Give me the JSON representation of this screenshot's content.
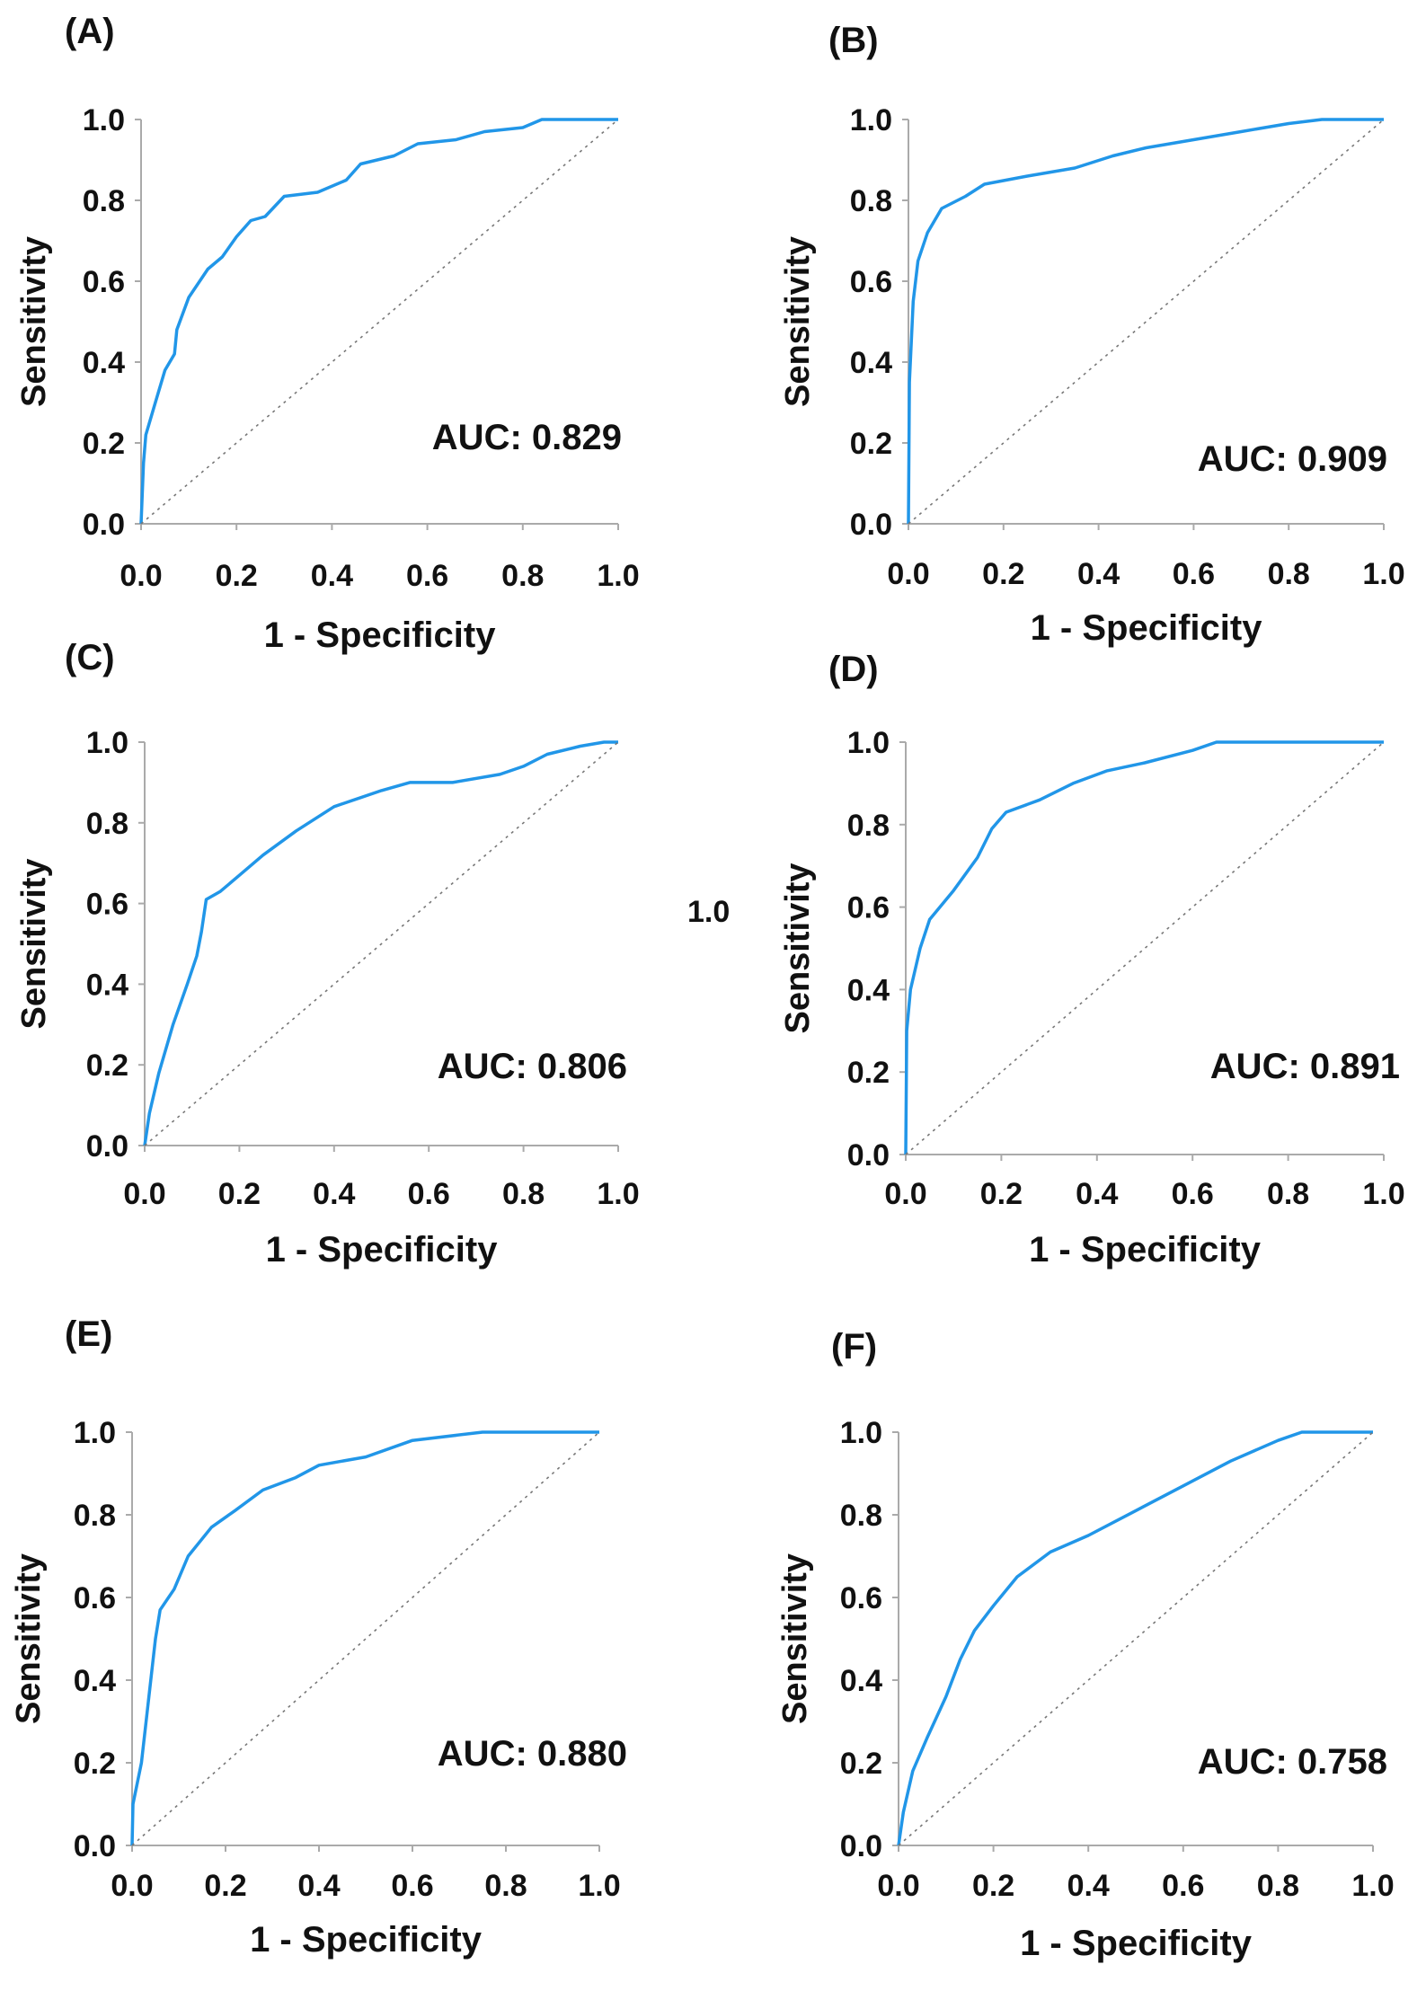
{
  "stray_label": "1.0",
  "chart_data": [
    {
      "type": "line",
      "panel_label": "(A)",
      "xlabel": "1 - Specificity",
      "ylabel": "Sensitivity",
      "annotation": "AUC: 0.829",
      "xlim": [
        0,
        1
      ],
      "ylim": [
        0,
        1
      ],
      "xticks": [
        "0.0",
        "0.2",
        "0.4",
        "0.6",
        "0.8",
        "1.0"
      ],
      "yticks": [
        "0.0",
        "0.2",
        "0.4",
        "0.6",
        "0.8",
        "1.0"
      ],
      "grid": false,
      "series": [
        {
          "name": "ROC",
          "color": "#2196e8",
          "points": [
            [
              0,
              0
            ],
            [
              0.005,
              0.15
            ],
            [
              0.01,
              0.22
            ],
            [
              0.03,
              0.3
            ],
            [
              0.05,
              0.38
            ],
            [
              0.07,
              0.42
            ],
            [
              0.075,
              0.48
            ],
            [
              0.1,
              0.56
            ],
            [
              0.14,
              0.63
            ],
            [
              0.17,
              0.66
            ],
            [
              0.2,
              0.71
            ],
            [
              0.23,
              0.75
            ],
            [
              0.26,
              0.76
            ],
            [
              0.3,
              0.81
            ],
            [
              0.37,
              0.82
            ],
            [
              0.43,
              0.85
            ],
            [
              0.46,
              0.89
            ],
            [
              0.53,
              0.91
            ],
            [
              0.58,
              0.94
            ],
            [
              0.66,
              0.95
            ],
            [
              0.72,
              0.97
            ],
            [
              0.8,
              0.98
            ],
            [
              0.84,
              1.0
            ],
            [
              1,
              1
            ]
          ]
        },
        {
          "name": "reference",
          "color": "#777777",
          "points": [
            [
              0,
              0
            ],
            [
              1,
              1
            ]
          ]
        }
      ]
    },
    {
      "type": "line",
      "panel_label": "(B)",
      "xlabel": "1 - Specificity",
      "ylabel": "Sensitivity",
      "annotation": "AUC: 0.909",
      "xlim": [
        0,
        1
      ],
      "ylim": [
        0,
        1
      ],
      "xticks": [
        "0.0",
        "0.2",
        "0.4",
        "0.6",
        "0.8",
        "1.0"
      ],
      "yticks": [
        "0.0",
        "0.2",
        "0.4",
        "0.6",
        "0.8",
        "1.0"
      ],
      "grid": false,
      "series": [
        {
          "name": "ROC",
          "color": "#2196e8",
          "points": [
            [
              0,
              0
            ],
            [
              0.002,
              0.35
            ],
            [
              0.01,
              0.55
            ],
            [
              0.02,
              0.65
            ],
            [
              0.04,
              0.72
            ],
            [
              0.07,
              0.78
            ],
            [
              0.12,
              0.81
            ],
            [
              0.16,
              0.84
            ],
            [
              0.25,
              0.86
            ],
            [
              0.35,
              0.88
            ],
            [
              0.43,
              0.91
            ],
            [
              0.5,
              0.93
            ],
            [
              0.6,
              0.95
            ],
            [
              0.7,
              0.97
            ],
            [
              0.8,
              0.99
            ],
            [
              0.87,
              1.0
            ],
            [
              1,
              1
            ]
          ]
        },
        {
          "name": "reference",
          "color": "#777777",
          "points": [
            [
              0,
              0
            ],
            [
              1,
              1
            ]
          ]
        }
      ]
    },
    {
      "type": "line",
      "panel_label": "(C)",
      "xlabel": "1 - Specificity",
      "ylabel": "Sensitivity",
      "annotation": "AUC: 0.806",
      "xlim": [
        0,
        1
      ],
      "ylim": [
        0,
        1
      ],
      "xticks": [
        "0.0",
        "0.2",
        "0.4",
        "0.6",
        "0.8",
        "1.0"
      ],
      "yticks": [
        "0.0",
        "0.2",
        "0.4",
        "0.6",
        "0.8",
        "1.0"
      ],
      "grid": false,
      "series": [
        {
          "name": "ROC",
          "color": "#2196e8",
          "points": [
            [
              0,
              0
            ],
            [
              0.01,
              0.08
            ],
            [
              0.03,
              0.18
            ],
            [
              0.06,
              0.3
            ],
            [
              0.09,
              0.4
            ],
            [
              0.11,
              0.47
            ],
            [
              0.12,
              0.53
            ],
            [
              0.13,
              0.61
            ],
            [
              0.16,
              0.63
            ],
            [
              0.2,
              0.67
            ],
            [
              0.25,
              0.72
            ],
            [
              0.32,
              0.78
            ],
            [
              0.4,
              0.84
            ],
            [
              0.5,
              0.88
            ],
            [
              0.56,
              0.9
            ],
            [
              0.65,
              0.9
            ],
            [
              0.75,
              0.92
            ],
            [
              0.8,
              0.94
            ],
            [
              0.85,
              0.97
            ],
            [
              0.92,
              0.99
            ],
            [
              0.97,
              1.0
            ],
            [
              1,
              1
            ]
          ]
        },
        {
          "name": "reference",
          "color": "#777777",
          "points": [
            [
              0,
              0
            ],
            [
              1,
              1
            ]
          ]
        }
      ]
    },
    {
      "type": "line",
      "panel_label": "(D)",
      "xlabel": "1 - Specificity",
      "ylabel": "Sensitivity",
      "annotation": "AUC: 0.891",
      "xlim": [
        0,
        1
      ],
      "ylim": [
        0,
        1
      ],
      "xticks": [
        "0.0",
        "0.2",
        "0.4",
        "0.6",
        "0.8",
        "1.0"
      ],
      "yticks": [
        "0.0",
        "0.2",
        "0.4",
        "0.6",
        "0.8",
        "1.0"
      ],
      "grid": false,
      "series": [
        {
          "name": "ROC",
          "color": "#2196e8",
          "points": [
            [
              0,
              0
            ],
            [
              0.002,
              0.3
            ],
            [
              0.01,
              0.4
            ],
            [
              0.03,
              0.5
            ],
            [
              0.05,
              0.57
            ],
            [
              0.1,
              0.64
            ],
            [
              0.15,
              0.72
            ],
            [
              0.18,
              0.79
            ],
            [
              0.21,
              0.83
            ],
            [
              0.28,
              0.86
            ],
            [
              0.35,
              0.9
            ],
            [
              0.42,
              0.93
            ],
            [
              0.5,
              0.95
            ],
            [
              0.6,
              0.98
            ],
            [
              0.65,
              1.0
            ],
            [
              1,
              1
            ]
          ]
        },
        {
          "name": "reference",
          "color": "#777777",
          "points": [
            [
              0,
              0
            ],
            [
              1,
              1
            ]
          ]
        }
      ]
    },
    {
      "type": "line",
      "panel_label": "(E)",
      "xlabel": "1 - Specificity",
      "ylabel": "Sensitivity",
      "annotation": "AUC: 0.880",
      "xlim": [
        0,
        1
      ],
      "ylim": [
        0,
        1
      ],
      "xticks": [
        "0.0",
        "0.2",
        "0.4",
        "0.6",
        "0.8",
        "1.0"
      ],
      "yticks": [
        "0.0",
        "0.2",
        "0.4",
        "0.6",
        "0.8",
        "1.0"
      ],
      "grid": false,
      "series": [
        {
          "name": "ROC",
          "color": "#2196e8",
          "points": [
            [
              0,
              0
            ],
            [
              0.002,
              0.1
            ],
            [
              0.02,
              0.2
            ],
            [
              0.035,
              0.35
            ],
            [
              0.05,
              0.5
            ],
            [
              0.06,
              0.57
            ],
            [
              0.09,
              0.62
            ],
            [
              0.12,
              0.7
            ],
            [
              0.17,
              0.77
            ],
            [
              0.22,
              0.81
            ],
            [
              0.28,
              0.86
            ],
            [
              0.35,
              0.89
            ],
            [
              0.4,
              0.92
            ],
            [
              0.5,
              0.94
            ],
            [
              0.6,
              0.98
            ],
            [
              0.75,
              1.0
            ],
            [
              1,
              1
            ]
          ]
        },
        {
          "name": "reference",
          "color": "#777777",
          "points": [
            [
              0,
              0
            ],
            [
              1,
              1
            ]
          ]
        }
      ]
    },
    {
      "type": "line",
      "panel_label": "(F)",
      "xlabel": "1 - Specificity",
      "ylabel": "Sensitivity",
      "annotation": "AUC: 0.758",
      "xlim": [
        0,
        1
      ],
      "ylim": [
        0,
        1
      ],
      "xticks": [
        "0.0",
        "0.2",
        "0.4",
        "0.6",
        "0.8",
        "1.0"
      ],
      "yticks": [
        "0.0",
        "0.2",
        "0.4",
        "0.6",
        "0.8",
        "1.0"
      ],
      "grid": false,
      "series": [
        {
          "name": "ROC",
          "color": "#2196e8",
          "points": [
            [
              0,
              0
            ],
            [
              0.01,
              0.08
            ],
            [
              0.03,
              0.18
            ],
            [
              0.06,
              0.26
            ],
            [
              0.1,
              0.36
            ],
            [
              0.13,
              0.45
            ],
            [
              0.16,
              0.52
            ],
            [
              0.2,
              0.58
            ],
            [
              0.25,
              0.65
            ],
            [
              0.32,
              0.71
            ],
            [
              0.4,
              0.75
            ],
            [
              0.5,
              0.81
            ],
            [
              0.6,
              0.87
            ],
            [
              0.7,
              0.93
            ],
            [
              0.8,
              0.98
            ],
            [
              0.85,
              1.0
            ],
            [
              1,
              1
            ]
          ]
        },
        {
          "name": "reference",
          "color": "#777777",
          "points": [
            [
              0,
              0
            ],
            [
              1,
              1
            ]
          ]
        }
      ]
    }
  ]
}
